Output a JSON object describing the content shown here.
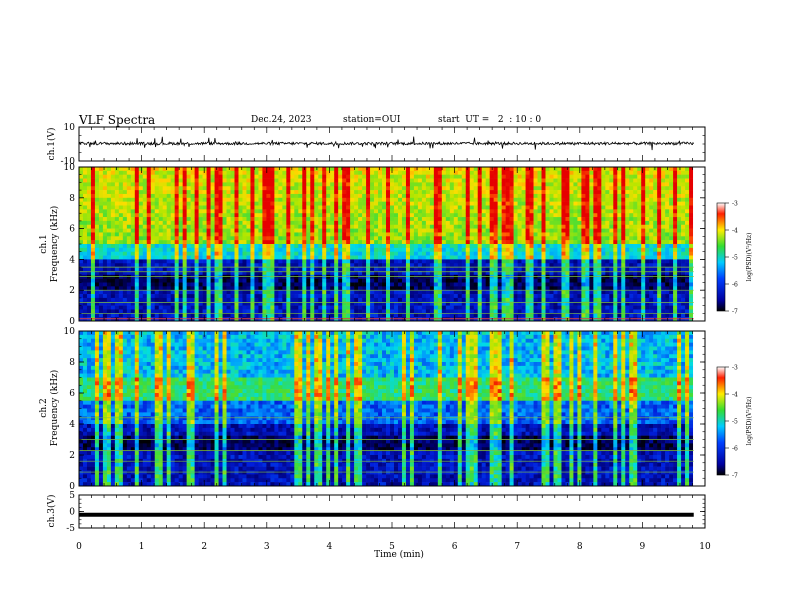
{
  "header": {
    "title": "VLF Spectra",
    "date": "Dec.24, 2023",
    "station": "station=OUI",
    "start_ut": "start  UT =   2  : 10 : 0"
  },
  "chart_data": [
    {
      "type": "line",
      "panel": "ch1-waveform",
      "ylabel": "ch.1(V)",
      "ylim": [
        -10,
        10
      ],
      "yticks": [
        -10,
        10
      ],
      "xlim": [
        0,
        10
      ],
      "series": [
        {
          "values": "baseline ~ +0.3 V with noise, spikes to about ±3 V"
        }
      ]
    },
    {
      "type": "heatmap",
      "panel": "ch1-spectrogram",
      "ylabel": "ch.1 Frequency  (kHz)",
      "ylim": [
        0,
        10
      ],
      "yticks": [
        0,
        2,
        4,
        6,
        8,
        10
      ],
      "xlim": [
        0,
        10
      ],
      "colorbar": {
        "label": "log(PSD)(V²/Hz)",
        "range": [
          -7,
          -3
        ],
        "ticks": [
          -7,
          -6,
          -5,
          -4,
          -3
        ]
      }
    },
    {
      "type": "heatmap",
      "panel": "ch2-spectrogram",
      "ylabel": "ch.2 Frequency  (kHz)",
      "ylim": [
        0,
        10
      ],
      "yticks": [
        0,
        2,
        4,
        6,
        8,
        10
      ],
      "xlim": [
        0,
        10
      ],
      "colorbar": {
        "label": "log(PSD)(V²/Hz)",
        "range": [
          -7,
          -3
        ],
        "ticks": [
          -7,
          -6,
          -5,
          -4,
          -3
        ]
      }
    },
    {
      "type": "line",
      "panel": "ch3-waveform",
      "ylabel": "ch.3(V)",
      "ylim": [
        -5,
        5
      ],
      "yticks": [
        -5,
        0,
        5
      ],
      "xlim": [
        0,
        10
      ],
      "series": [
        {
          "values": "constant ~ -1 V (thick flat line) from 0 to 9.8 min"
        }
      ]
    }
  ],
  "x_axis": {
    "label": "Time  (min)",
    "ticks": [
      "0",
      "1",
      "2",
      "3",
      "4",
      "5",
      "6",
      "7",
      "8",
      "9",
      "10"
    ]
  },
  "colors": {
    "low": "#00008b",
    "mid": "#00d4ff",
    "green": "#33dd33",
    "yellow": "#ffee00",
    "high": "#ff2000"
  }
}
